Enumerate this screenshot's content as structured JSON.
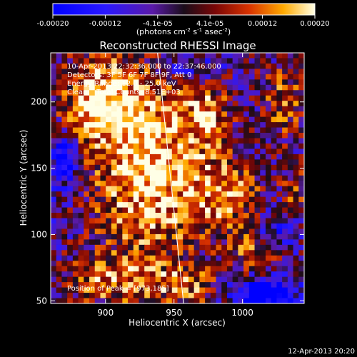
{
  "chart_data": {
    "type": "heatmap",
    "title": "Reconstructed RHESSI Image",
    "xlabel": "Heliocentric X (arcsec)",
    "ylabel": "Heliocentric Y (arcsec)",
    "xlim": [
      860,
      1045
    ],
    "ylim": [
      48,
      237
    ],
    "xticks": [
      900,
      950,
      1000
    ],
    "yticks": [
      50,
      100,
      150,
      200
    ],
    "colorbar": {
      "ticks": [
        "-0.00020",
        "-0.00012",
        "-4.1e-05",
        "4.1e-05",
        "0.00012",
        "0.00020"
      ],
      "unit_parts": [
        "(photons cm",
        "-2",
        " s",
        "-1",
        " asec",
        "-2",
        ")"
      ],
      "range": [
        -0.0002,
        0.0002
      ]
    },
    "annotations": [
      "10-Apr-2013 22:32:36.000 to 22:37:46.000",
      "Detectors: 3F 5F 6F 7F 8F 9F, Att 0",
      "Energy Range: 12.0 - 25.0 keV",
      "Clean    Total Counts: 8.51E+03"
    ],
    "peak_label": "Position of Peak = [973,185]",
    "peak": [
      973,
      185
    ],
    "limb_line": [
      [
        938,
        237
      ],
      [
        957,
        48
      ]
    ],
    "timestamp": "12-Apr-2013 20:20",
    "image_grid": {
      "nx": 46,
      "ny": 47,
      "sources": [
        {
          "x": 932,
          "y": 153,
          "amp": 1.0,
          "sx": 30,
          "sy": 55
        },
        {
          "x": 895,
          "y": 200,
          "amp": 0.85,
          "sx": 18,
          "sy": 22
        },
        {
          "x": 975,
          "y": 190,
          "amp": 0.65,
          "sx": 10,
          "sy": 18
        },
        {
          "x": 1030,
          "y": 200,
          "amp": 0.55,
          "sx": 12,
          "sy": 20
        },
        {
          "x": 990,
          "y": 130,
          "amp": 0.7,
          "sx": 18,
          "sy": 18
        },
        {
          "x": 1010,
          "y": 85,
          "amp": 0.55,
          "sx": 15,
          "sy": 12
        },
        {
          "x": 905,
          "y": 65,
          "amp": 0.6,
          "sx": 25,
          "sy": 12
        },
        {
          "x": 960,
          "y": 60,
          "amp": 0.5,
          "sx": 15,
          "sy": 10
        },
        {
          "x": 1040,
          "y": 130,
          "amp": 0.45,
          "sx": 8,
          "sy": 15
        }
      ],
      "dark_spots": [
        {
          "x": 1015,
          "y": 55,
          "amp": -1.2,
          "sx": 15,
          "sy": 8
        },
        {
          "x": 870,
          "y": 155,
          "amp": -0.7,
          "sx": 8,
          "sy": 15
        },
        {
          "x": 960,
          "y": 225,
          "amp": -0.5,
          "sx": 15,
          "sy": 10
        },
        {
          "x": 1025,
          "y": 100,
          "amp": -0.45,
          "sx": 10,
          "sy": 12
        }
      ]
    }
  }
}
